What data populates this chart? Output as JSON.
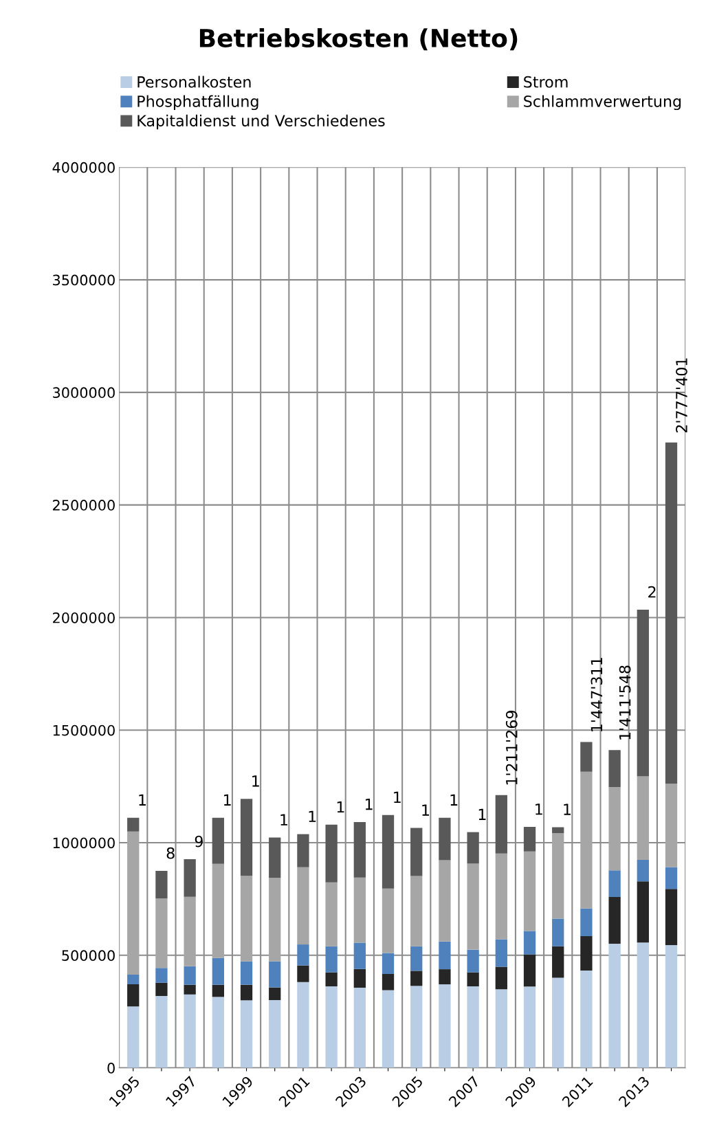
{
  "chart_data": {
    "type": "bar",
    "title": "Betriebskosten (Netto)",
    "stacked": true,
    "categories": [
      "1995",
      null,
      "1997",
      null,
      "1999",
      null,
      "2001",
      null,
      "2003",
      null,
      "2005",
      null,
      "2007",
      null,
      "2009",
      null,
      "2011",
      null,
      "2013",
      null
    ],
    "series": [
      {
        "name": "Personalkosten",
        "color": "#b9cde5",
        "values": [
          273000,
          319000,
          326000,
          315000,
          300000,
          301000,
          381000,
          362000,
          356000,
          345000,
          364000,
          371000,
          362000,
          349000,
          361000,
          400000,
          432000,
          551000,
          557000,
          545000
        ]
      },
      {
        "name": "Strom",
        "color": "#262626",
        "values": [
          98000,
          59000,
          43000,
          54000,
          69000,
          56000,
          74000,
          62000,
          83000,
          72000,
          67000,
          67000,
          62000,
          100000,
          143000,
          140000,
          153000,
          208000,
          271000,
          250000
        ]
      },
      {
        "name": "Phosphatfällung",
        "color": "#4f81bd",
        "values": [
          43000,
          66000,
          82000,
          119000,
          104000,
          116000,
          93000,
          116000,
          117000,
          93000,
          109000,
          123000,
          101000,
          122000,
          104000,
          123000,
          123000,
          118000,
          96000,
          97000
        ]
      },
      {
        "name": "Schlammverwertung",
        "color": "#a6a6a6",
        "values": [
          636000,
          309000,
          309000,
          418000,
          380000,
          371000,
          343000,
          284000,
          289000,
          286000,
          312000,
          361000,
          382000,
          381000,
          353000,
          379000,
          607000,
          370000,
          371000,
          370000
        ]
      },
      {
        "name": "Kapitaldienst und Verschiedenes",
        "color": "#595959",
        "values": [
          61000,
          122000,
          167000,
          205000,
          342000,
          179000,
          147000,
          256000,
          247000,
          327000,
          214000,
          189000,
          140000,
          259269,
          109000,
          27000,
          132311,
          164548,
          740000,
          1515401
        ]
      }
    ],
    "totals": [
      null,
      null,
      null,
      null,
      null,
      null,
      null,
      null,
      null,
      null,
      null,
      null,
      null,
      "1'211'269",
      null,
      null,
      "1'447'311",
      "1'411'548",
      null,
      "2'777'401"
    ],
    "annotations": [
      {
        "text": "1",
        "x": "1995",
        "y": 1111000
      },
      "8",
      {
        "text": "9",
        "x": "1997",
        "y": 927000
      },
      "1",
      {
        "text": "1",
        "x": "1999",
        "y": 1195000
      },
      "1",
      {
        "text": "1",
        "x": "2001",
        "y": 1038000
      },
      "1",
      {
        "text": "1",
        "x": "2003",
        "y": 1092000
      },
      "1",
      {
        "text": "1",
        "x": "2005",
        "y": 1066000
      },
      "1",
      {
        "text": "1",
        "x": "2007",
        "y": 1047000
      },
      {
        "text": "1",
        "x": "2009",
        "y": 1070000
      },
      "1",
      {
        "text": "2",
        "x": "2013",
        "y": 2035000
      }
    ],
    "ylim": [
      0,
      4000000
    ],
    "yticks": [
      0,
      500000,
      1000000,
      1500000,
      2000000,
      2500000,
      3000000,
      3500000,
      4000000
    ],
    "grid": true,
    "legend": "top"
  }
}
